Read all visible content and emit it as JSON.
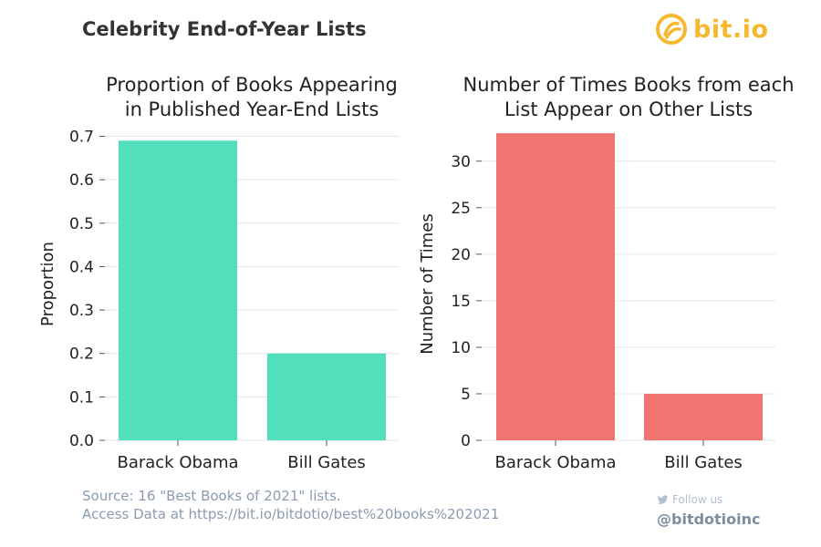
{
  "header": {
    "title": "Celebrity End-of-Year Lists",
    "brand": "bit.io",
    "brand_color": "#f5b82e"
  },
  "chart_data": [
    {
      "type": "bar",
      "title_lines": [
        "Proportion of Books Appearing",
        "in Published Year-End Lists"
      ],
      "xlabel": "",
      "ylabel": "Proportion",
      "categories": [
        "Barack Obama",
        "Bill Gates"
      ],
      "values": [
        0.69,
        0.2
      ],
      "ylim": [
        0,
        0.72
      ],
      "yticks": [
        0.0,
        0.1,
        0.2,
        0.3,
        0.4,
        0.5,
        0.6,
        0.7
      ],
      "ytick_labels": [
        "0.0",
        "0.1",
        "0.2",
        "0.3",
        "0.4",
        "0.5",
        "0.6",
        "0.7"
      ],
      "color": "#52e0bc",
      "grid": true
    },
    {
      "type": "bar",
      "title_lines": [
        "Number of Times Books from each",
        "List Appear on Other Lists"
      ],
      "xlabel": "",
      "ylabel": "Number of Times",
      "categories": [
        "Barack Obama",
        "Bill Gates"
      ],
      "values": [
        33,
        5
      ],
      "ylim": [
        0,
        33.6
      ],
      "yticks": [
        0,
        5,
        10,
        15,
        20,
        25,
        30
      ],
      "ytick_labels": [
        "0",
        "5",
        "10",
        "15",
        "20",
        "25",
        "30"
      ],
      "color": "#f07470",
      "grid": true
    }
  ],
  "footer": {
    "source_line1": "Source: 16 \"Best Books of 2021\" lists.",
    "source_line2": "Access Data at https://bit.io/bitdotio/best%20books%202021",
    "follow_text": "Follow us",
    "handle": "@bitdotioinc"
  }
}
